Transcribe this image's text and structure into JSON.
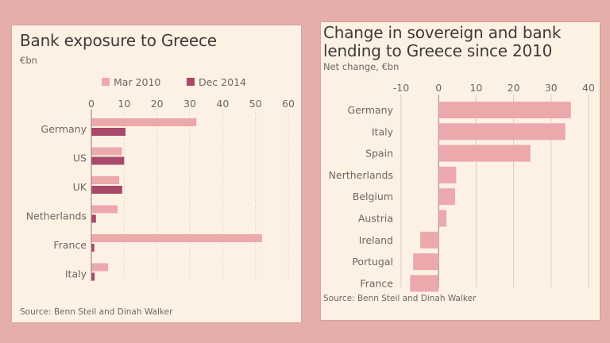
{
  "colors": {
    "background": "#e5aeab",
    "panel": "#fdf1e4",
    "series_light": "#eba9ac",
    "series_dark": "#a8486a",
    "text": "#4a4341",
    "muted": "#6f6663",
    "grid": "#d9cdc2",
    "axis": "#8a807c"
  },
  "chart_data": [
    {
      "type": "bar",
      "orientation": "horizontal",
      "title": "Bank exposure to Greece",
      "subtitle": "€bn",
      "xlabel": "",
      "ylabel": "",
      "categories": [
        "Germany",
        "US",
        "UK",
        "Netherlands",
        "France",
        "Italy"
      ],
      "series": [
        {
          "name": "Mar 2010",
          "values": [
            32,
            9.3,
            8.5,
            8,
            52,
            5.1
          ]
        },
        {
          "name": "Dec 2014",
          "values": [
            10.4,
            10,
            9.4,
            1.4,
            0.9,
            1
          ]
        }
      ],
      "xlim": [
        0,
        60
      ],
      "xticks": [
        0,
        10,
        20,
        30,
        40,
        50,
        60
      ],
      "grid": true,
      "legend_position": "top",
      "source": "Source: Benn Steil and Dinah Walker"
    },
    {
      "type": "bar",
      "orientation": "horizontal",
      "title": "Change in sovereign and bank lending to Greece since 2010",
      "title_lines": [
        "Change in sovereign and bank",
        "lending to Greece since 2010"
      ],
      "subtitle": "Net change, €bn",
      "xlabel": "",
      "ylabel": "",
      "categories": [
        "Germany",
        "Italy",
        "Spain",
        "Nertherlands",
        "Belgium",
        "Austria",
        "Ireland",
        "Portugal",
        "France"
      ],
      "series": [
        {
          "name": "Net change",
          "values": [
            35.3,
            33.8,
            24.5,
            4.7,
            4.4,
            2.1,
            -4.9,
            -6.8,
            -7.6
          ]
        }
      ],
      "xlim": [
        -10,
        40
      ],
      "xticks": [
        -10,
        0,
        10,
        20,
        30,
        40
      ],
      "grid": true,
      "legend_position": "none",
      "source": "Source: Benn Steil and Dinah Walker"
    }
  ]
}
